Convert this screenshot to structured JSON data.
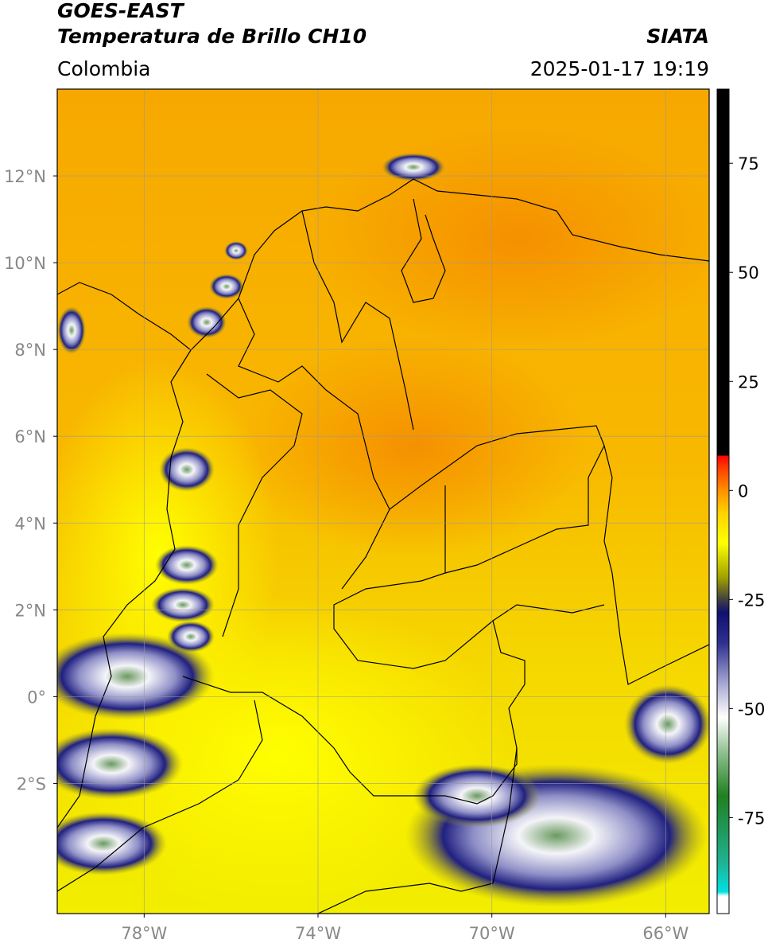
{
  "header": {
    "title": "GOES-EAST",
    "subtitle": "Temperatura de Brillo CH10",
    "source": "SIATA",
    "region": "Colombia",
    "timestamp": "2025-01-17 19:19"
  },
  "map": {
    "xlim": [
      -80,
      -65
    ],
    "ylim": [
      -5,
      14
    ],
    "xticks": [
      {
        "value": -78,
        "label": "78°W"
      },
      {
        "value": -74,
        "label": "74°W"
      },
      {
        "value": -70,
        "label": "70°W"
      },
      {
        "value": -66,
        "label": "66°W"
      }
    ],
    "yticks": [
      {
        "value": 12,
        "label": "12°N"
      },
      {
        "value": 10,
        "label": "10°N"
      },
      {
        "value": 8,
        "label": "8°N"
      },
      {
        "value": 6,
        "label": "6°N"
      },
      {
        "value": 4,
        "label": "4°N"
      },
      {
        "value": 2,
        "label": "2°N"
      },
      {
        "value": 0,
        "label": "0°"
      },
      {
        "value": -2,
        "label": "2°S"
      }
    ],
    "grid": true
  },
  "colorbar": {
    "ylim": [
      -97,
      92
    ],
    "yticks": [
      75,
      50,
      25,
      0,
      -25,
      -50,
      -75
    ],
    "stops": [
      {
        "value": -97,
        "color": "#ffffff"
      },
      {
        "value": -93,
        "color": "#ffffff"
      },
      {
        "value": -92,
        "color": "#00e0e0"
      },
      {
        "value": -85,
        "color": "#20b090"
      },
      {
        "value": -70,
        "color": "#208020"
      },
      {
        "value": -60,
        "color": "#90c090"
      },
      {
        "value": -52,
        "color": "#ffffff"
      },
      {
        "value": -45,
        "color": "#b0b0d8"
      },
      {
        "value": -35,
        "color": "#303090"
      },
      {
        "value": -28,
        "color": "#101070"
      },
      {
        "value": -25,
        "color": "#404040"
      },
      {
        "value": -20,
        "color": "#a0a000"
      },
      {
        "value": -12,
        "color": "#ffff00"
      },
      {
        "value": -5,
        "color": "#ffd000"
      },
      {
        "value": 0,
        "color": "#ff9000"
      },
      {
        "value": 5,
        "color": "#ff4000"
      },
      {
        "value": 8,
        "color": "#ff0000"
      },
      {
        "value": 8,
        "color": "#000000"
      },
      {
        "value": 92,
        "color": "#000000"
      }
    ]
  }
}
